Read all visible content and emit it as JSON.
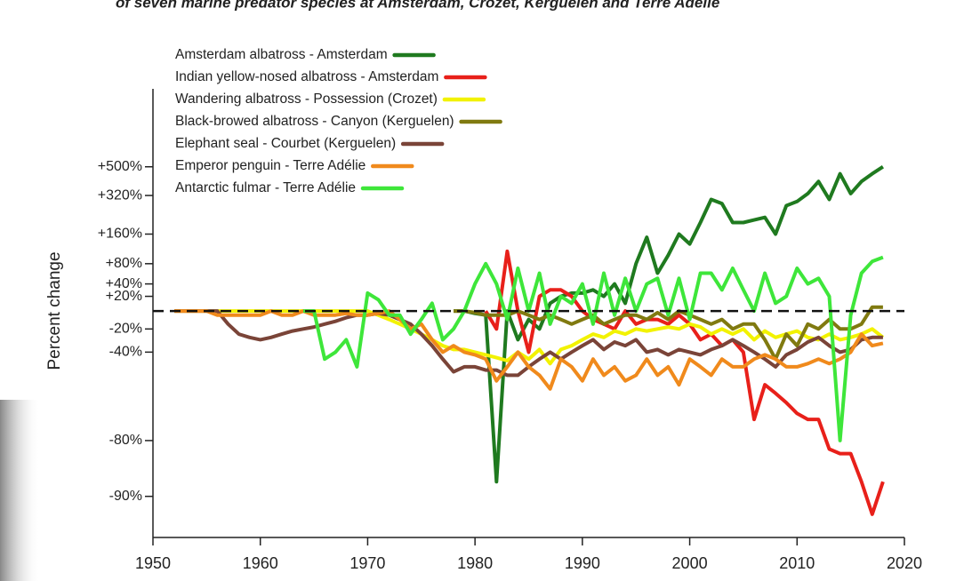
{
  "chart_data": {
    "type": "line",
    "title": "of seven marine predator species at Amsterdam, Crozet, Kerguelen and Terre Adélie",
    "y_label": "Percent change",
    "yscale": "log-ratio",
    "reference_line": 0,
    "grid": false,
    "legend": "upper left",
    "xlim": [
      1950,
      2020
    ],
    "xticks": [
      1950,
      1960,
      1970,
      1980,
      1990,
      2000,
      2010,
      2020
    ],
    "ylim": [
      -94,
      1480
    ],
    "yticks": [
      {
        "value": 500,
        "label": "+500%"
      },
      {
        "value": 320,
        "label": "+320%"
      },
      {
        "value": 160,
        "label": "+160%"
      },
      {
        "value": 80,
        "label": "+80%"
      },
      {
        "value": 40,
        "label": "+40%"
      },
      {
        "value": 20,
        "label": "+20%"
      },
      {
        "value": -20,
        "label": "-20%"
      },
      {
        "value": -40,
        "label": "-40%"
      },
      {
        "value": -80,
        "label": "-80%"
      },
      {
        "value": -90,
        "label": "-90%"
      }
    ],
    "x": [
      1952,
      1953,
      1954,
      1955,
      1956,
      1957,
      1958,
      1959,
      1960,
      1961,
      1962,
      1963,
      1964,
      1965,
      1966,
      1967,
      1968,
      1969,
      1970,
      1971,
      1972,
      1973,
      1974,
      1975,
      1976,
      1977,
      1978,
      1979,
      1980,
      1981,
      1982,
      1983,
      1984,
      1985,
      1986,
      1987,
      1988,
      1989,
      1990,
      1991,
      1992,
      1993,
      1994,
      1995,
      1996,
      1997,
      1998,
      1999,
      2000,
      2001,
      2002,
      2003,
      2004,
      2005,
      2006,
      2007,
      2008,
      2009,
      2010,
      2011,
      2012,
      2013,
      2014,
      2015,
      2016,
      2017,
      2018
    ],
    "series": [
      {
        "name": "Amsterdam albatross - Amsterdam",
        "color": "#1f7a1f",
        "values": [
          null,
          null,
          null,
          null,
          null,
          null,
          null,
          null,
          null,
          null,
          null,
          null,
          null,
          null,
          null,
          null,
          null,
          null,
          null,
          null,
          null,
          null,
          null,
          null,
          null,
          null,
          0,
          0,
          -3,
          -5,
          -88,
          0,
          -30,
          -10,
          -20,
          10,
          20,
          25,
          25,
          30,
          20,
          40,
          10,
          80,
          150,
          60,
          100,
          160,
          130,
          200,
          300,
          280,
          200,
          200,
          210,
          220,
          160,
          270,
          290,
          330,
          400,
          300,
          450,
          330,
          400,
          450,
          500
        ]
      },
      {
        "name": "Indian yellow-nosed albatross - Amsterdam",
        "color": "#e8201a",
        "values": [
          null,
          null,
          null,
          null,
          null,
          null,
          null,
          null,
          null,
          null,
          null,
          null,
          null,
          null,
          null,
          null,
          null,
          null,
          null,
          null,
          null,
          null,
          null,
          null,
          null,
          null,
          null,
          null,
          null,
          0,
          -20,
          110,
          0,
          -40,
          20,
          30,
          30,
          20,
          0,
          -10,
          -15,
          -20,
          0,
          -15,
          -10,
          -10,
          -15,
          -5,
          -15,
          -30,
          -25,
          -35,
          -30,
          -40,
          -74,
          -60,
          -64,
          -68,
          -72,
          -74,
          -74,
          -82,
          -83,
          -83,
          -88,
          -92,
          -88
        ]
      },
      {
        "name": "Wandering albatross - Possession (Crozet)",
        "color": "#f2f200",
        "values": [
          0,
          0,
          0,
          0,
          0,
          0,
          0,
          0,
          0,
          0,
          0,
          0,
          0,
          0,
          0,
          0,
          0,
          0,
          0,
          -5,
          -10,
          -15,
          -20,
          -25,
          -30,
          -35,
          -38,
          -38,
          -40,
          -42,
          -44,
          -46,
          -40,
          -45,
          -38,
          -48,
          -38,
          -35,
          -30,
          -25,
          -28,
          -22,
          -25,
          -20,
          -22,
          -20,
          -18,
          -20,
          -15,
          -18,
          -25,
          -20,
          -25,
          -20,
          -30,
          -22,
          -28,
          -25,
          -22,
          -28,
          -30,
          -25,
          -30,
          -28,
          -25,
          -20,
          -28
        ]
      },
      {
        "name": "Black-browed albatross - Canyon (Kerguelen)",
        "color": "#807a10",
        "values": [
          null,
          null,
          null,
          null,
          null,
          null,
          null,
          null,
          null,
          null,
          null,
          null,
          null,
          null,
          null,
          null,
          null,
          null,
          null,
          null,
          null,
          null,
          null,
          null,
          null,
          null,
          0,
          0,
          -2,
          -5,
          -5,
          -5,
          0,
          -5,
          -10,
          -5,
          -10,
          -15,
          -10,
          -5,
          -15,
          -10,
          -5,
          -5,
          -10,
          -2,
          -10,
          0,
          -5,
          -10,
          -15,
          -10,
          -20,
          -15,
          -15,
          -30,
          -45,
          -25,
          -35,
          -15,
          -20,
          -10,
          -20,
          -20,
          -15,
          5,
          5
        ]
      },
      {
        "name": "Elephant seal - Courbet (Kerguelen)",
        "color": "#7a4438",
        "values": [
          0,
          0,
          0,
          0,
          0,
          -15,
          -25,
          -28,
          -30,
          -28,
          -25,
          -22,
          -20,
          -18,
          -15,
          -12,
          -8,
          -5,
          -5,
          -3,
          -5,
          -10,
          -15,
          -25,
          -35,
          -45,
          -53,
          -50,
          -50,
          -52,
          -52,
          -55,
          -55,
          -50,
          -45,
          -40,
          -45,
          -40,
          -35,
          -30,
          -38,
          -32,
          -35,
          -30,
          -40,
          -38,
          -42,
          -38,
          -40,
          -42,
          -38,
          -35,
          -30,
          -35,
          -40,
          -45,
          -50,
          -42,
          -38,
          -32,
          -28,
          -35,
          -40,
          -38,
          -30,
          -28,
          -28
        ]
      },
      {
        "name": "Emperor penguin - Terre Adélie",
        "color": "#f08a1c",
        "values": [
          0,
          0,
          0,
          0,
          -5,
          -5,
          -5,
          -5,
          -5,
          0,
          -5,
          -5,
          0,
          -5,
          -5,
          -5,
          -3,
          -5,
          -5,
          -3,
          0,
          -10,
          -20,
          -15,
          -30,
          -40,
          -35,
          -40,
          -42,
          -45,
          -58,
          -50,
          -40,
          -50,
          -55,
          -62,
          -45,
          -50,
          -58,
          -45,
          -55,
          -50,
          -58,
          -55,
          -45,
          -55,
          -50,
          -60,
          -45,
          -50,
          -55,
          -45,
          -50,
          -50,
          -45,
          -42,
          -45,
          -50,
          -50,
          -48,
          -45,
          -48,
          -45,
          -40,
          -25,
          -35,
          -33
        ]
      },
      {
        "name": "Antarctic fulmar - Terre Adélie",
        "color": "#3ee63a",
        "values": [
          null,
          null,
          null,
          null,
          null,
          null,
          null,
          null,
          null,
          null,
          null,
          null,
          0,
          0,
          -45,
          -40,
          -30,
          -50,
          25,
          15,
          -5,
          -5,
          -25,
          -10,
          10,
          -30,
          -20,
          0,
          40,
          80,
          40,
          -10,
          70,
          0,
          60,
          -15,
          20,
          10,
          40,
          -15,
          60,
          -5,
          50,
          0,
          40,
          50,
          -5,
          50,
          -10,
          60,
          60,
          30,
          70,
          30,
          0,
          60,
          10,
          20,
          70,
          40,
          50,
          20,
          -80,
          -5,
          60,
          85,
          95
        ]
      }
    ]
  }
}
